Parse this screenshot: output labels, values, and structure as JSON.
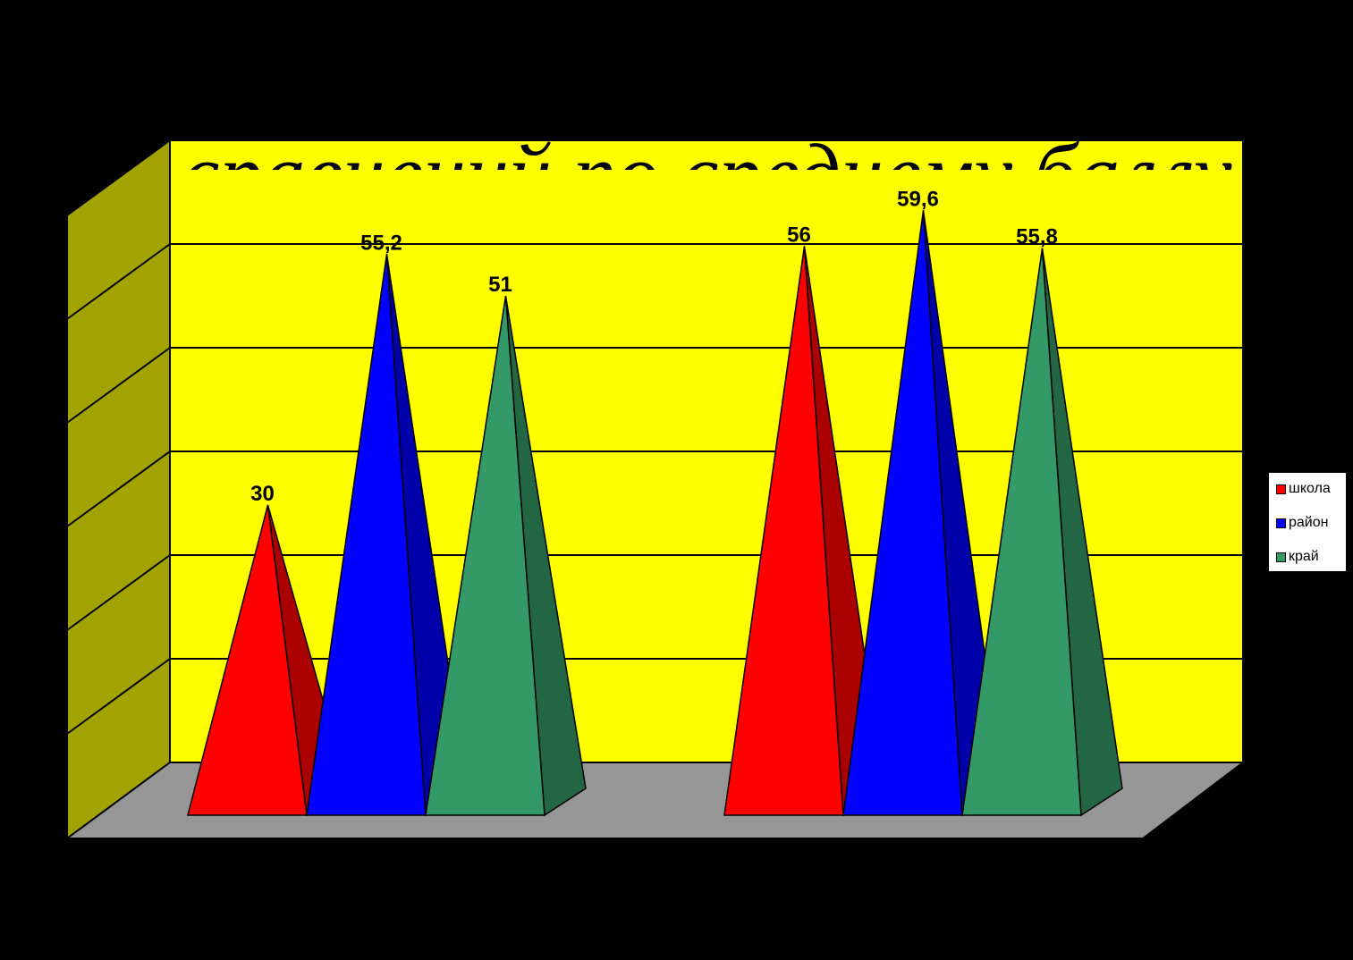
{
  "chart_data": {
    "type": "bar",
    "style": "3d-pyramid",
    "title": "сравнений по среднему баллу",
    "categories": [
      "",
      ""
    ],
    "series": [
      {
        "name": "школа",
        "values": [
          30,
          56
        ],
        "labels": [
          "30",
          "56"
        ],
        "color": "#ff0000",
        "shade": "#aa0000"
      },
      {
        "name": "район",
        "values": [
          55.2,
          59.6
        ],
        "labels": [
          "55,2",
          "59,6"
        ],
        "color": "#0000ff",
        "shade": "#0000aa"
      },
      {
        "name": "край",
        "values": [
          51,
          55.8
        ],
        "labels": [
          "51",
          "55,8"
        ],
        "color": "#339966",
        "shade": "#226644"
      }
    ],
    "ylim": [
      0,
      60
    ],
    "grid": true,
    "legend": "right",
    "colors": {
      "background": "#000000",
      "wall": "#ffff00",
      "side_wall": "#a3a300",
      "floor": "#969696"
    }
  }
}
